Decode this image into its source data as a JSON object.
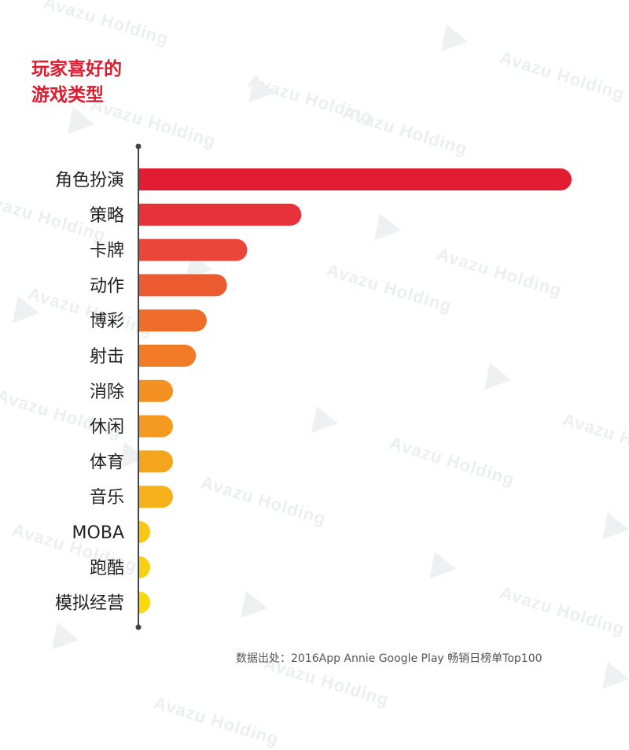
{
  "watermark": {
    "text": "Avazu Holding"
  },
  "chart_data": {
    "type": "bar",
    "orientation": "horizontal",
    "title_lines": [
      "玩家喜好的",
      "游戏类型"
    ],
    "categories": [
      "角色扮演",
      "策略",
      "卡牌",
      "动作",
      "博彩",
      "射击",
      "消除",
      "休闲",
      "体育",
      "音乐",
      "MOBA",
      "跑酷",
      "模拟经营"
    ],
    "values": [
      32,
      12,
      8,
      6.5,
      5,
      4.2,
      2.5,
      2.5,
      2.5,
      2.5,
      0.4,
      0.4,
      0.4
    ],
    "colors": [
      "#e21d33",
      "#e7323b",
      "#ea463a",
      "#ec5b30",
      "#ef6d2b",
      "#f17b27",
      "#f39222",
      "#f49a20",
      "#f5a51d",
      "#f6b11a",
      "#f8c812",
      "#f9d00f",
      "#fad90c"
    ],
    "xlabel": "",
    "ylabel": "",
    "grid": false,
    "legend": "none"
  },
  "source_note": "数据出处：2016App Annie Google Play 畅销日榜单Top100"
}
